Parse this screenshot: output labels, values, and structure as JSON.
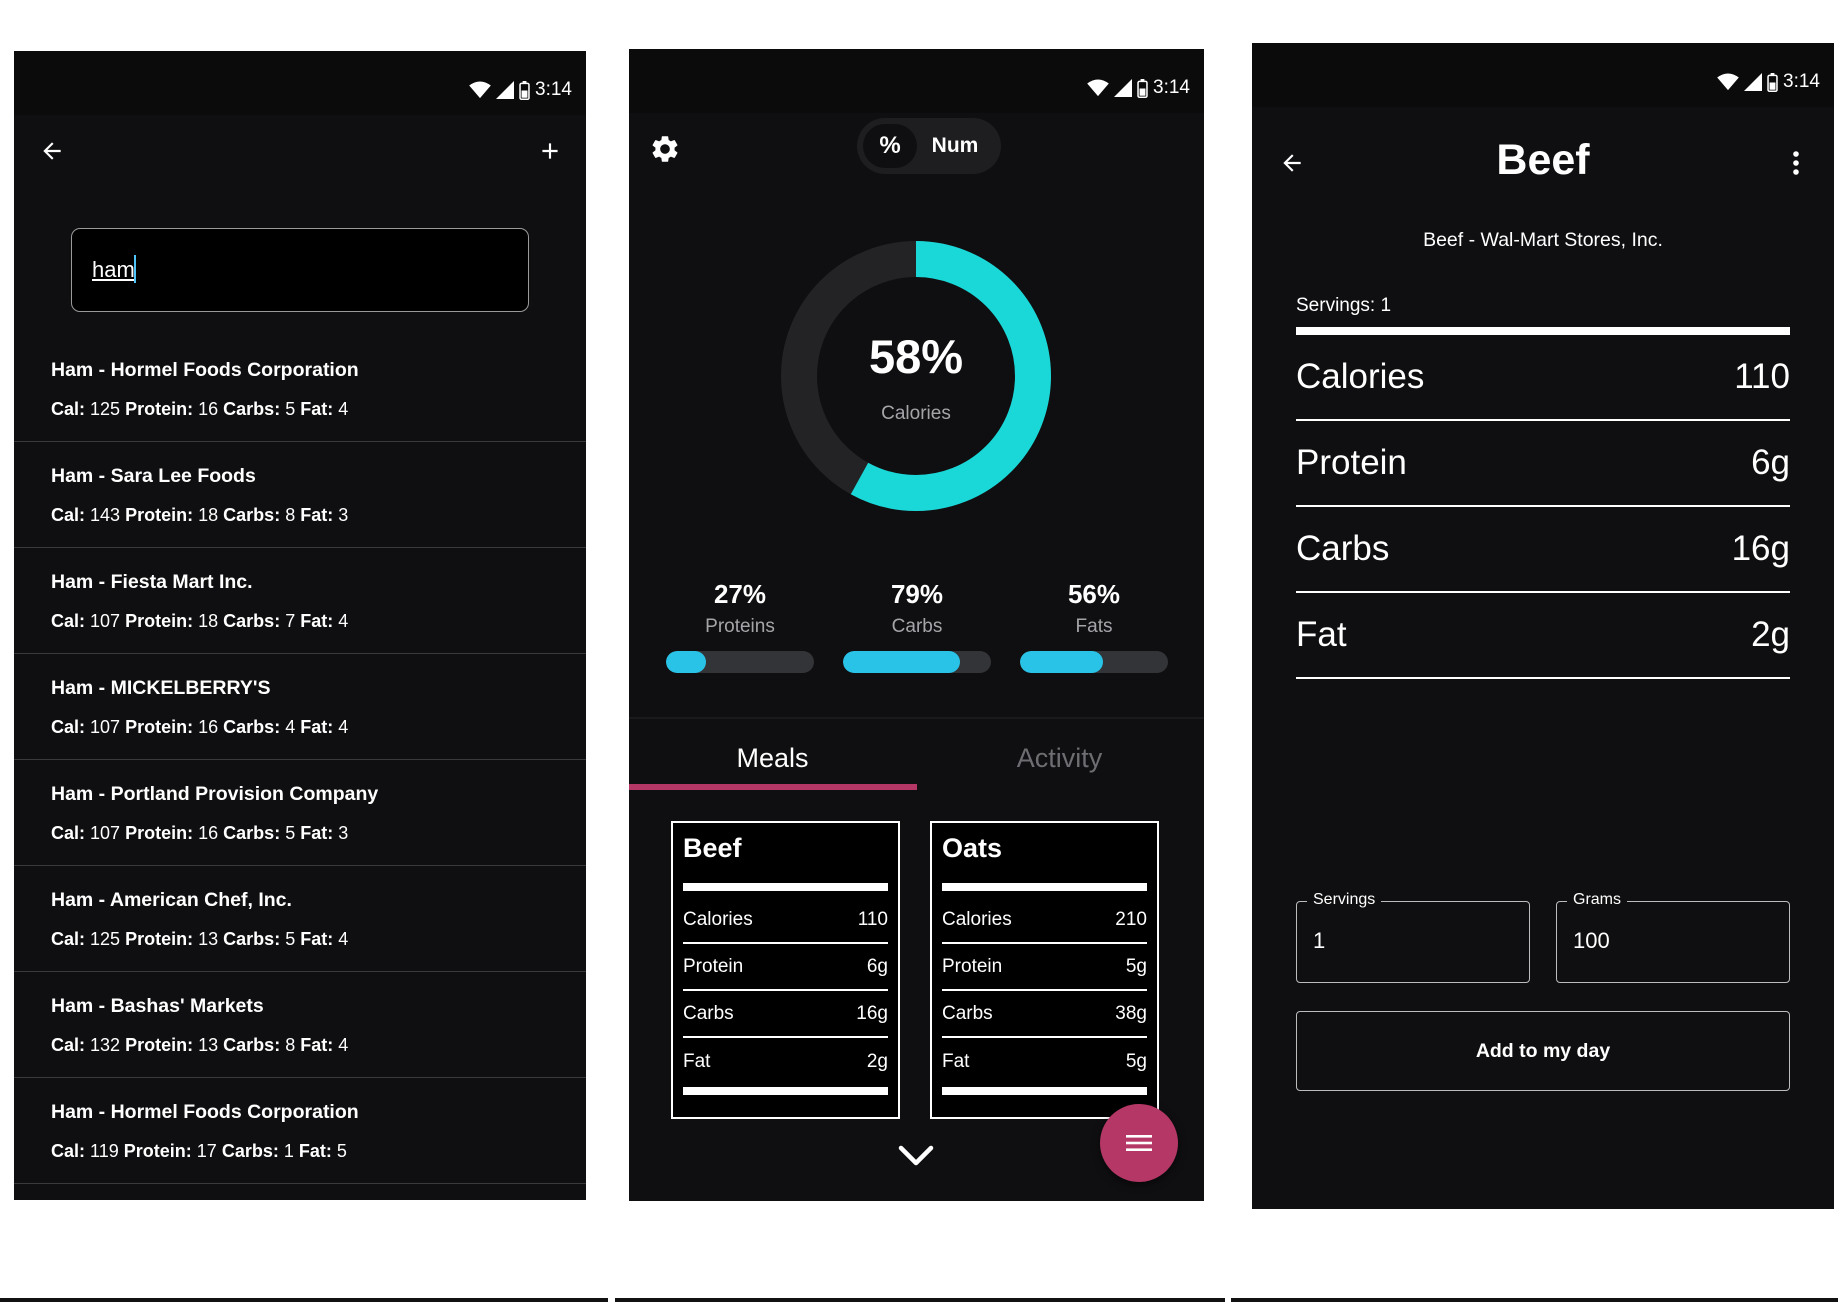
{
  "status": {
    "time": "3:14"
  },
  "search_screen": {
    "query": "ham",
    "results": [
      {
        "name": "Ham - Hormel Foods Corporation",
        "cal": "125",
        "protein": "16",
        "carbs": "5",
        "fat": "4"
      },
      {
        "name": "Ham - Sara Lee Foods",
        "cal": "143",
        "protein": "18",
        "carbs": "8",
        "fat": "3"
      },
      {
        "name": "Ham - Fiesta Mart Inc.",
        "cal": "107",
        "protein": "18",
        "carbs": "7",
        "fat": "4"
      },
      {
        "name": "Ham - MICKELBERRY'S",
        "cal": "107",
        "protein": "16",
        "carbs": "4",
        "fat": "4"
      },
      {
        "name": "Ham - Portland Provision Company",
        "cal": "107",
        "protein": "16",
        "carbs": "5",
        "fat": "3"
      },
      {
        "name": "Ham - American Chef, Inc.",
        "cal": "125",
        "protein": "13",
        "carbs": "5",
        "fat": "4"
      },
      {
        "name": "Ham - Bashas' Markets",
        "cal": "132",
        "protein": "13",
        "carbs": "8",
        "fat": "4"
      },
      {
        "name": "Ham - Hormel Foods Corporation",
        "cal": "119",
        "protein": "17",
        "carbs": "1",
        "fat": "5"
      }
    ],
    "labels": {
      "cal": "Cal:",
      "protein": "Protein:",
      "carbs": "Carbs:",
      "fat": "Fat:"
    }
  },
  "dashboard": {
    "toggle": {
      "percent": "%",
      "num": "Num"
    },
    "calories": {
      "percent_label": "58%",
      "label": "Calories",
      "fraction": 0.58
    },
    "macros": [
      {
        "percent": "27%",
        "label": "Proteins",
        "fraction": 0.27
      },
      {
        "percent": "79%",
        "label": "Carbs",
        "fraction": 0.79
      },
      {
        "percent": "56%",
        "label": "Fats",
        "fraction": 0.56
      }
    ],
    "tabs": {
      "meals": "Meals",
      "activity": "Activity"
    },
    "meals": [
      {
        "title": "Beef",
        "calories": "110",
        "protein": "6g",
        "carbs": "16g",
        "fat": "2g"
      },
      {
        "title": "Oats",
        "calories": "210",
        "protein": "5g",
        "carbs": "38g",
        "fat": "5g"
      }
    ],
    "row_labels": {
      "calories": "Calories",
      "protein": "Protein",
      "carbs": "Carbs",
      "fat": "Fat"
    },
    "colors": {
      "accent": "#b53766",
      "ring": "#1ad8d8",
      "bar": "#29c3e8"
    }
  },
  "detail_screen": {
    "title": "Beef",
    "subtitle": "Beef - Wal-Mart Stores, Inc.",
    "servings_label": "Servings: 1",
    "rows": [
      {
        "label": "Calories",
        "value": "110"
      },
      {
        "label": "Protein",
        "value": "6g"
      },
      {
        "label": "Carbs",
        "value": "16g"
      },
      {
        "label": "Fat",
        "value": "2g"
      }
    ],
    "servings_field": {
      "label": "Servings",
      "value": "1"
    },
    "grams_field": {
      "label": "Grams",
      "value": "100"
    },
    "add_button": "Add to my day"
  }
}
